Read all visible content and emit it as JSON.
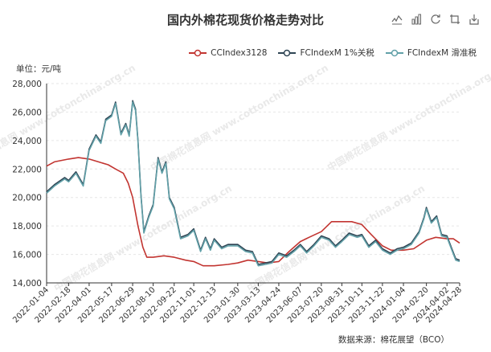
{
  "title": "国内外棉花现货价格走势对比",
  "unit_label": "单位：元/吨",
  "source": "数据来源：棉花展望（BCO）",
  "watermark": "中国棉花信息网 www.cottonchina.org.cn",
  "toolbox": [
    "line-chart-icon",
    "bar-chart-icon",
    "refresh-icon",
    "restore-icon",
    "download-icon"
  ],
  "colors": {
    "ccindex": "#c23531",
    "fc_1pct": "#2f4554",
    "fc_slide": "#61a0a8"
  },
  "chart_data": {
    "type": "line",
    "ylim": [
      14000,
      28000
    ],
    "yticks": [
      14000,
      16000,
      18000,
      20000,
      22000,
      24000,
      26000,
      28000
    ],
    "ytick_labels": [
      "14,000",
      "16,000",
      "18,000",
      "20,000",
      "22,000",
      "24,000",
      "26,000",
      "28,000"
    ],
    "xticks": [
      "2022-01-04",
      "2022-02-18",
      "2022-04-01",
      "2022-05-17",
      "2022-06-29",
      "2022-08-10",
      "2022-09-22",
      "2022-11-01",
      "2022-12-13",
      "2023-01-30",
      "2023-03-13",
      "2023-04-24",
      "2023-06-07",
      "2023-07-20",
      "2023-08-31",
      "2023-10-11",
      "2023-11-22",
      "2024-01-04",
      "2024-02-20",
      "2024-04-02",
      "2024-04-28"
    ],
    "series": [
      {
        "name": "CCIndex3128",
        "color": "#c23531",
        "points": [
          [
            "2022-01-04",
            22200
          ],
          [
            "2022-01-20",
            22500
          ],
          [
            "2022-02-18",
            22700
          ],
          [
            "2022-03-10",
            22800
          ],
          [
            "2022-04-01",
            22700
          ],
          [
            "2022-04-20",
            22500
          ],
          [
            "2022-05-10",
            22300
          ],
          [
            "2022-05-25",
            22000
          ],
          [
            "2022-06-10",
            21700
          ],
          [
            "2022-06-20",
            21000
          ],
          [
            "2022-06-29",
            20000
          ],
          [
            "2022-07-10",
            18000
          ],
          [
            "2022-07-20",
            16500
          ],
          [
            "2022-07-28",
            15800
          ],
          [
            "2022-08-10",
            15800
          ],
          [
            "2022-09-01",
            15900
          ],
          [
            "2022-09-22",
            15800
          ],
          [
            "2022-10-15",
            15600
          ],
          [
            "2022-11-01",
            15500
          ],
          [
            "2022-11-20",
            15200
          ],
          [
            "2022-12-13",
            15200
          ],
          [
            "2023-01-10",
            15300
          ],
          [
            "2023-01-30",
            15400
          ],
          [
            "2023-02-20",
            15600
          ],
          [
            "2023-03-13",
            15500
          ],
          [
            "2023-04-01",
            15400
          ],
          [
            "2023-04-24",
            15500
          ],
          [
            "2023-05-15",
            16200
          ],
          [
            "2023-06-07",
            16900
          ],
          [
            "2023-06-25",
            17200
          ],
          [
            "2023-07-20",
            17600
          ],
          [
            "2023-08-10",
            18300
          ],
          [
            "2023-08-31",
            18300
          ],
          [
            "2023-09-20",
            18300
          ],
          [
            "2023-10-11",
            18100
          ],
          [
            "2023-10-30",
            17400
          ],
          [
            "2023-11-22",
            16600
          ],
          [
            "2023-12-10",
            16300
          ],
          [
            "2024-01-04",
            16300
          ],
          [
            "2024-01-25",
            16400
          ],
          [
            "2024-02-20",
            17000
          ],
          [
            "2024-03-10",
            17200
          ],
          [
            "2024-04-02",
            17100
          ],
          [
            "2024-04-15",
            17100
          ],
          [
            "2024-04-28",
            16800
          ]
        ]
      },
      {
        "name": "FCIndexM 1%关税",
        "color": "#2f4554",
        "points": [
          [
            "2022-01-04",
            20400
          ],
          [
            "2022-01-20",
            20900
          ],
          [
            "2022-02-10",
            21400
          ],
          [
            "2022-02-18",
            21200
          ],
          [
            "2022-03-05",
            21800
          ],
          [
            "2022-03-20",
            20900
          ],
          [
            "2022-04-01",
            23400
          ],
          [
            "2022-04-15",
            24400
          ],
          [
            "2022-04-25",
            23900
          ],
          [
            "2022-05-05",
            25500
          ],
          [
            "2022-05-17",
            25800
          ],
          [
            "2022-05-25",
            26700
          ],
          [
            "2022-06-05",
            24500
          ],
          [
            "2022-06-15",
            25200
          ],
          [
            "2022-06-22",
            24400
          ],
          [
            "2022-06-29",
            26800
          ],
          [
            "2022-07-05",
            26200
          ],
          [
            "2022-07-10",
            24000
          ],
          [
            "2022-07-16",
            20200
          ],
          [
            "2022-07-22",
            17600
          ],
          [
            "2022-08-01",
            18700
          ],
          [
            "2022-08-10",
            19500
          ],
          [
            "2022-08-20",
            22800
          ],
          [
            "2022-08-28",
            21800
          ],
          [
            "2022-09-05",
            22500
          ],
          [
            "2022-09-12",
            20000
          ],
          [
            "2022-09-22",
            19300
          ],
          [
            "2022-10-05",
            17200
          ],
          [
            "2022-10-20",
            17400
          ],
          [
            "2022-11-01",
            17800
          ],
          [
            "2022-11-15",
            16300
          ],
          [
            "2022-11-25",
            17200
          ],
          [
            "2022-12-05",
            16400
          ],
          [
            "2022-12-13",
            17100
          ],
          [
            "2022-12-28",
            16500
          ],
          [
            "2023-01-10",
            16700
          ],
          [
            "2023-01-30",
            16700
          ],
          [
            "2023-02-15",
            16300
          ],
          [
            "2023-03-01",
            16200
          ],
          [
            "2023-03-13",
            15300
          ],
          [
            "2023-03-28",
            15400
          ],
          [
            "2023-04-10",
            15500
          ],
          [
            "2023-04-24",
            16100
          ],
          [
            "2023-05-10",
            15900
          ],
          [
            "2023-05-25",
            16300
          ],
          [
            "2023-06-07",
            16700
          ],
          [
            "2023-06-20",
            16200
          ],
          [
            "2023-07-05",
            16700
          ],
          [
            "2023-07-20",
            17300
          ],
          [
            "2023-08-05",
            17100
          ],
          [
            "2023-08-18",
            16600
          ],
          [
            "2023-08-31",
            17000
          ],
          [
            "2023-09-15",
            17500
          ],
          [
            "2023-10-01",
            17300
          ],
          [
            "2023-10-11",
            17400
          ],
          [
            "2023-10-25",
            16600
          ],
          [
            "2023-11-08",
            17000
          ],
          [
            "2023-11-22",
            16400
          ],
          [
            "2023-12-08",
            16100
          ],
          [
            "2023-12-22",
            16400
          ],
          [
            "2024-01-04",
            16500
          ],
          [
            "2024-01-20",
            16800
          ],
          [
            "2024-02-05",
            17600
          ],
          [
            "2024-02-15",
            18600
          ],
          [
            "2024-02-20",
            19300
          ],
          [
            "2024-03-01",
            18300
          ],
          [
            "2024-03-12",
            18700
          ],
          [
            "2024-03-22",
            17400
          ],
          [
            "2024-04-02",
            17300
          ],
          [
            "2024-04-12",
            16400
          ],
          [
            "2024-04-20",
            15700
          ],
          [
            "2024-04-28",
            15600
          ]
        ]
      },
      {
        "name": "FCIndexM 滑准税",
        "color": "#61a0a8",
        "points": [
          [
            "2022-01-04",
            20300
          ],
          [
            "2022-01-20",
            20800
          ],
          [
            "2022-02-10",
            21300
          ],
          [
            "2022-02-18",
            21100
          ],
          [
            "2022-03-05",
            21700
          ],
          [
            "2022-03-20",
            20800
          ],
          [
            "2022-04-01",
            23300
          ],
          [
            "2022-04-15",
            24300
          ],
          [
            "2022-04-25",
            23800
          ],
          [
            "2022-05-05",
            25400
          ],
          [
            "2022-05-17",
            25700
          ],
          [
            "2022-05-25",
            26600
          ],
          [
            "2022-06-05",
            24400
          ],
          [
            "2022-06-15",
            25100
          ],
          [
            "2022-06-22",
            24300
          ],
          [
            "2022-06-29",
            26700
          ],
          [
            "2022-07-05",
            26100
          ],
          [
            "2022-07-10",
            23900
          ],
          [
            "2022-07-16",
            20100
          ],
          [
            "2022-07-22",
            17500
          ],
          [
            "2022-08-01",
            18600
          ],
          [
            "2022-08-10",
            19400
          ],
          [
            "2022-08-20",
            22700
          ],
          [
            "2022-08-28",
            21700
          ],
          [
            "2022-09-05",
            22400
          ],
          [
            "2022-09-12",
            19900
          ],
          [
            "2022-09-22",
            19200
          ],
          [
            "2022-10-05",
            17100
          ],
          [
            "2022-10-20",
            17300
          ],
          [
            "2022-11-01",
            17700
          ],
          [
            "2022-11-15",
            16200
          ],
          [
            "2022-11-25",
            17100
          ],
          [
            "2022-12-05",
            16300
          ],
          [
            "2022-12-13",
            17000
          ],
          [
            "2022-12-28",
            16400
          ],
          [
            "2023-01-10",
            16600
          ],
          [
            "2023-01-30",
            16600
          ],
          [
            "2023-02-15",
            16200
          ],
          [
            "2023-03-01",
            16100
          ],
          [
            "2023-03-13",
            15200
          ],
          [
            "2023-03-28",
            15300
          ],
          [
            "2023-04-10",
            15400
          ],
          [
            "2023-04-24",
            16000
          ],
          [
            "2023-05-10",
            15800
          ],
          [
            "2023-05-25",
            16200
          ],
          [
            "2023-06-07",
            16600
          ],
          [
            "2023-06-20",
            16100
          ],
          [
            "2023-07-05",
            16600
          ],
          [
            "2023-07-20",
            17200
          ],
          [
            "2023-08-05",
            17000
          ],
          [
            "2023-08-18",
            16500
          ],
          [
            "2023-08-31",
            16900
          ],
          [
            "2023-09-15",
            17400
          ],
          [
            "2023-10-01",
            17200
          ],
          [
            "2023-10-11",
            17300
          ],
          [
            "2023-10-25",
            16500
          ],
          [
            "2023-11-08",
            16900
          ],
          [
            "2023-11-22",
            16300
          ],
          [
            "2023-12-08",
            16000
          ],
          [
            "2023-12-22",
            16300
          ],
          [
            "2024-01-04",
            16400
          ],
          [
            "2024-01-20",
            16700
          ],
          [
            "2024-02-05",
            17500
          ],
          [
            "2024-02-15",
            18500
          ],
          [
            "2024-02-20",
            19200
          ],
          [
            "2024-03-01",
            18200
          ],
          [
            "2024-03-12",
            18600
          ],
          [
            "2024-03-22",
            17300
          ],
          [
            "2024-04-02",
            17200
          ],
          [
            "2024-04-12",
            16300
          ],
          [
            "2024-04-20",
            15600
          ],
          [
            "2024-04-28",
            15500
          ]
        ]
      }
    ]
  }
}
